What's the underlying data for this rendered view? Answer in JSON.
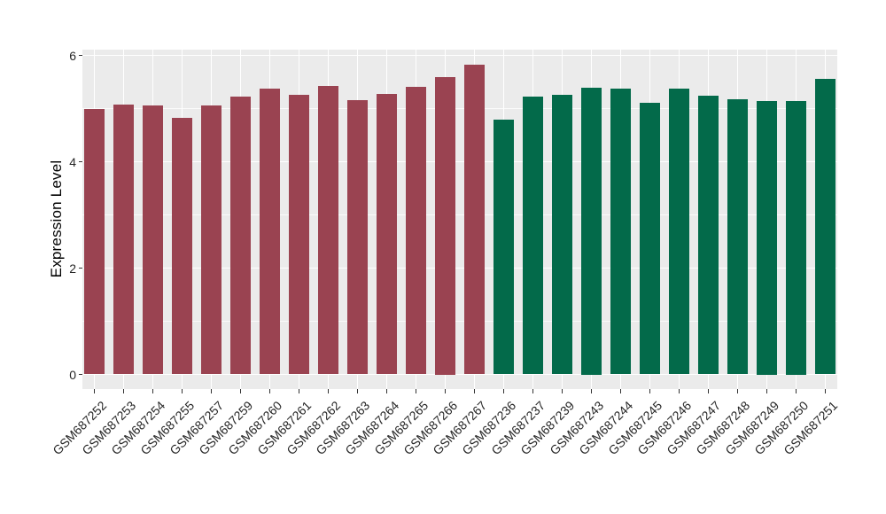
{
  "chart_data": {
    "type": "bar",
    "title": "",
    "xlabel": "",
    "ylabel": "Expression Level",
    "ylim": [
      0,
      6
    ],
    "yticks": [
      0,
      2,
      4,
      6
    ],
    "ytick_minor": [
      1,
      3,
      5
    ],
    "grid": true,
    "legend_position": "none",
    "series": [
      {
        "color": "#9A4351",
        "categories": [
          "GSM687252",
          "GSM687253",
          "GSM687254",
          "GSM687255",
          "GSM687257",
          "GSM687259",
          "GSM687260",
          "GSM687261",
          "GSM687262",
          "GSM687263",
          "GSM687264",
          "GSM687265",
          "GSM687266",
          "GSM687267"
        ],
        "values": [
          4.99,
          5.08,
          5.06,
          4.83,
          5.06,
          5.22,
          5.38,
          5.26,
          5.43,
          5.16,
          5.28,
          5.41,
          5.6,
          5.82
        ]
      },
      {
        "color": "#036A4A",
        "categories": [
          "GSM687236",
          "GSM687237",
          "GSM687239",
          "GSM687243",
          "GSM687244",
          "GSM687245",
          "GSM687246",
          "GSM687247",
          "GSM687248",
          "GSM687249",
          "GSM687250",
          "GSM687251"
        ],
        "values": [
          4.79,
          5.22,
          5.26,
          5.4,
          5.38,
          5.11,
          5.37,
          5.24,
          5.18,
          5.15,
          5.15,
          5.56
        ]
      }
    ]
  },
  "style": {
    "panel_background": "#EBEBEB",
    "grid_color": "#FFFFFF",
    "tick_color": "#333333",
    "tick_label_color": "#262626",
    "axis_title_color": "#000000",
    "figure_background": "#FFFFFF"
  }
}
